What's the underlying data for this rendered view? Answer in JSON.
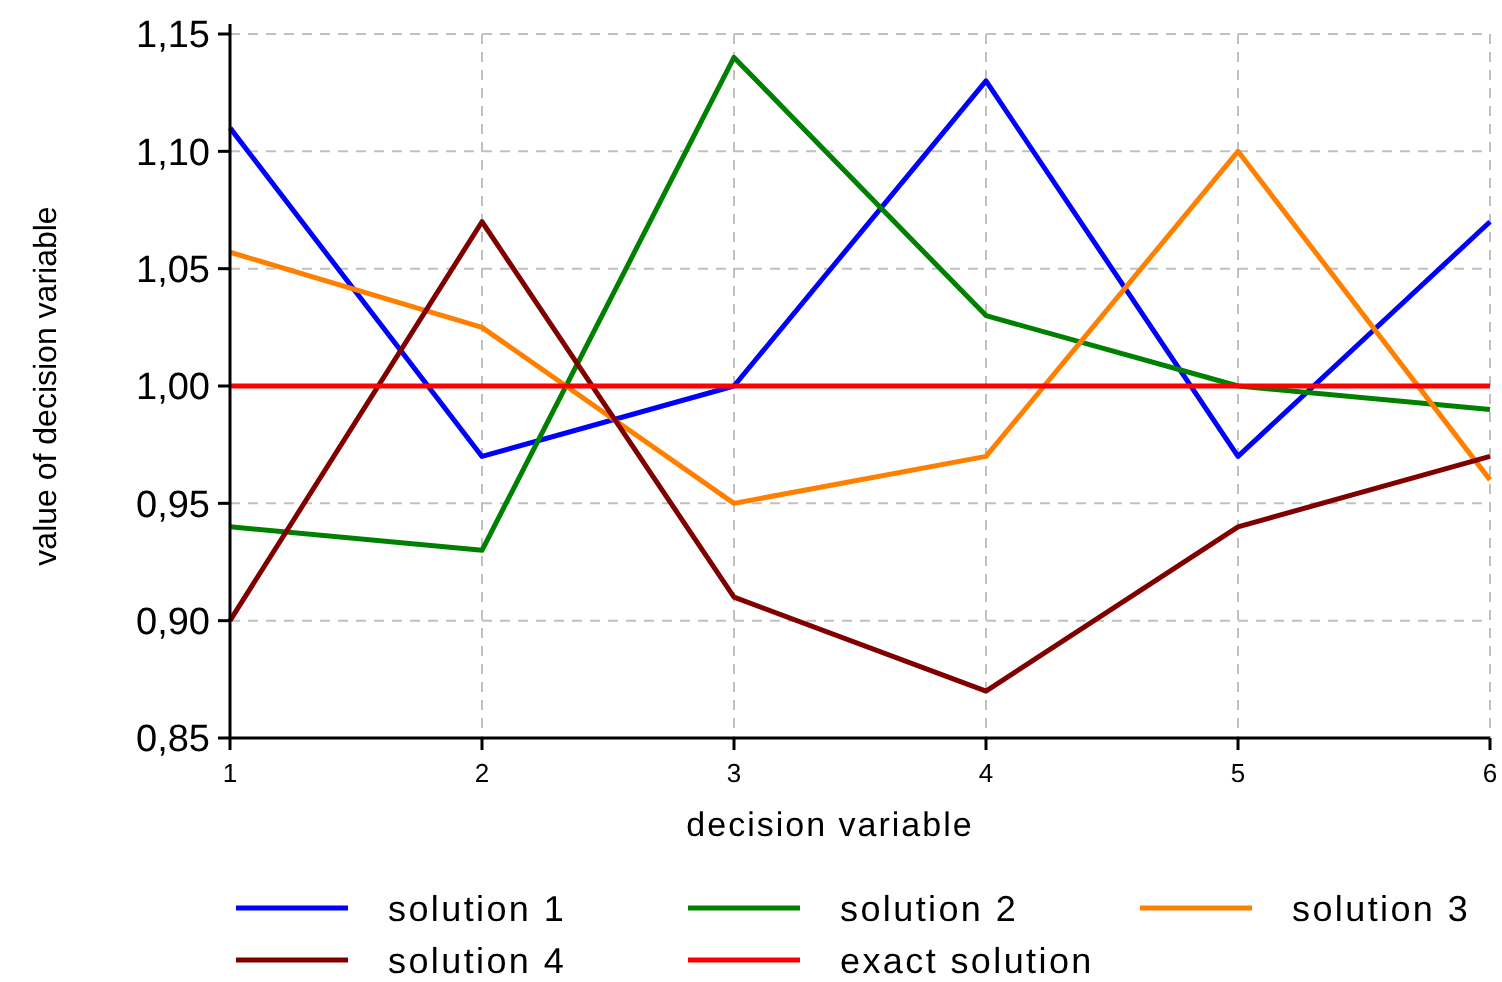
{
  "chart_data": {
    "type": "line",
    "xlabel": "decision variable",
    "ylabel": "value of decision variable",
    "x": [
      1,
      2,
      3,
      4,
      5,
      6
    ],
    "series": [
      {
        "name": "solution 1",
        "color": "#0000ff",
        "values": [
          1.11,
          0.97,
          1.0,
          1.13,
          0.97,
          1.07
        ]
      },
      {
        "name": "solution 2",
        "color": "#008000",
        "values": [
          0.94,
          0.93,
          1.14,
          1.03,
          1.0,
          0.99
        ]
      },
      {
        "name": "solution 3",
        "color": "#ff8000",
        "values": [
          1.057,
          1.025,
          0.95,
          0.97,
          1.1,
          0.96
        ]
      },
      {
        "name": "solution 4",
        "color": "#800000",
        "values": [
          0.9,
          1.07,
          0.91,
          0.87,
          0.94,
          0.97
        ]
      },
      {
        "name": "exact solution",
        "color": "#ff0000",
        "values": [
          1.0,
          1.0,
          1.0,
          1.0,
          1.0,
          1.0
        ]
      }
    ],
    "xlim": [
      1,
      6
    ],
    "xticks": [
      1,
      2,
      3,
      4,
      5,
      6
    ],
    "ylim": [
      0.85,
      1.15
    ],
    "yticks": [
      {
        "value": 0.85,
        "label": "0,85"
      },
      {
        "value": 0.9,
        "label": "0,90"
      },
      {
        "value": 0.95,
        "label": "0,95"
      },
      {
        "value": 1.0,
        "label": "1,00"
      },
      {
        "value": 1.05,
        "label": "1,05"
      },
      {
        "value": 1.1,
        "label": "1,10"
      },
      {
        "value": 1.15,
        "label": "1,15"
      }
    ],
    "grid": true,
    "legend": "bottom",
    "marker": "none",
    "line_style": "solid"
  }
}
